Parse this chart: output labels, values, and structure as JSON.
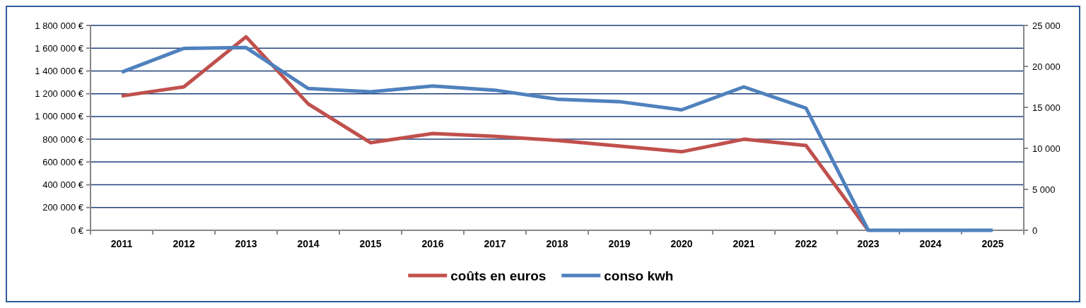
{
  "chart_data": {
    "type": "line",
    "categories": [
      "2011",
      "2012",
      "2013",
      "2014",
      "2015",
      "2016",
      "2017",
      "2018",
      "2019",
      "2020",
      "2021",
      "2022",
      "2023",
      "2024",
      "2025"
    ],
    "series": [
      {
        "name": "coûts en euros",
        "color": "#c0504d",
        "values": [
          1180000,
          1260000,
          1700000,
          1110000,
          770000,
          850000,
          825000,
          790000,
          740000,
          690000,
          800000,
          745000,
          0,
          null,
          null
        ]
      },
      {
        "name": "conso kwh",
        "color": "#4f81bd",
        "axis": "y2",
        "values": [
          19300,
          22200,
          22300,
          17300,
          16900,
          17600,
          17100,
          16000,
          15700,
          14700,
          17500,
          14900,
          0,
          0,
          0
        ]
      }
    ],
    "ylim": [
      0,
      1800000
    ],
    "yticks": [
      {
        "value": 0,
        "label": "0 €"
      },
      {
        "value": 200000,
        "label": "200 000 €"
      },
      {
        "value": 400000,
        "label": "400 000 €"
      },
      {
        "value": 600000,
        "label": "600 000 €"
      },
      {
        "value": 800000,
        "label": "800 000 €"
      },
      {
        "value": 1000000,
        "label": "1 000 000 €"
      },
      {
        "value": 1200000,
        "label": "1 200 000 €"
      },
      {
        "value": 1400000,
        "label": "1 400 000 €"
      },
      {
        "value": 1600000,
        "label": "1 600 000 €"
      },
      {
        "value": 1800000,
        "label": "1 800 000 €"
      }
    ],
    "y2lim": [
      0,
      25000
    ],
    "y2ticks": [
      0,
      {
        "value": 5000,
        "label": "5 000"
      },
      {
        "value": 10000,
        "label": "10 000"
      },
      {
        "value": 15000,
        "label": "15 000"
      },
      {
        "value": 20000,
        "label": "20 000"
      },
      {
        "value": 25000,
        "label": "25 000"
      }
    ],
    "grid": "y",
    "legend": "bottom",
    "line_style": "solid"
  }
}
